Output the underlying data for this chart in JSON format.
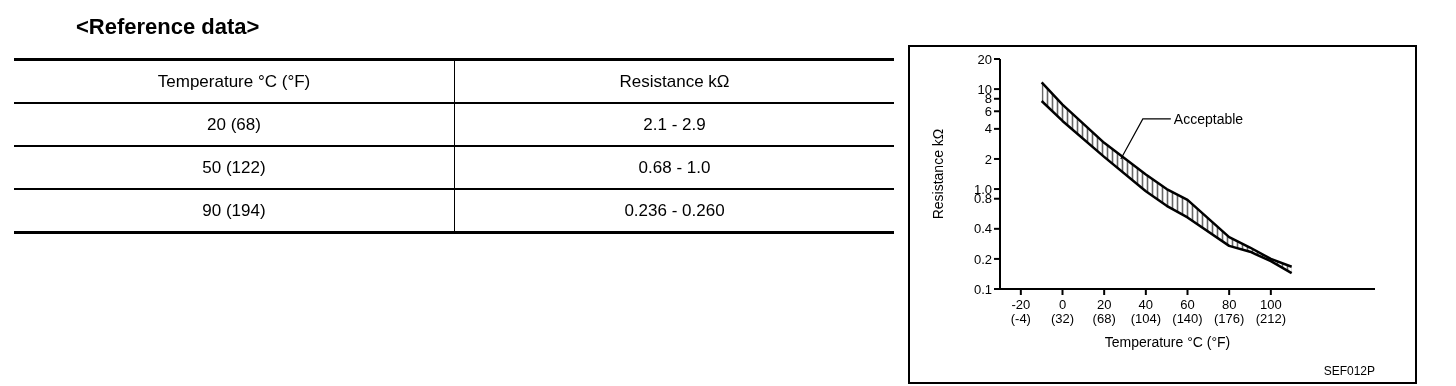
{
  "chart_data": [
    {
      "type": "other",
      "title": "<Reference data>",
      "annotations": [
        "Temperature °C (°F)",
        "Resistance kΩ",
        "20 (68)",
        "2.1 - 2.9",
        "50 (122)",
        "0.68 - 1.0",
        "90 (194)",
        "0.236 - 0.260"
      ]
    },
    {
      "type": "line",
      "x": [
        -10,
        0,
        20,
        40,
        50,
        60,
        80,
        90,
        100,
        110
      ],
      "series": [
        {
          "color": "#000000",
          "values": [
            7.6,
            4.8,
            2.1,
            0.95,
            0.68,
            0.52,
            0.27,
            0.236,
            0.19,
            0.144
          ],
          "lower": [
            7.6,
            4.8,
            2.1,
            0.95,
            0.68,
            0.52,
            0.27,
            0.236,
            0.19,
            0.144
          ],
          "upper": [
            11.7,
            7,
            2.9,
            1.4,
            1.0,
            0.78,
            0.33,
            0.26,
            0.2,
            0.167
          ]
        },
        {
          "color": "#000000",
          "values": [
            11.7,
            7,
            2.9,
            1.4,
            1.0,
            0.78,
            0.33,
            0.26,
            0.2,
            0.167
          ]
        }
      ],
      "log": "y",
      "ylim": [
        0.1,
        20
      ],
      "yticks": [
        0.1,
        0.2,
        0.4,
        0.8,
        {
          "value": 1,
          "label": "1.0"
        },
        2,
        4,
        6,
        8,
        10,
        20
      ],
      "xlim": [
        -30,
        150
      ],
      "xticks": [
        -20,
        0,
        20,
        40,
        60,
        80,
        100
      ],
      "x2lim": [
        -22,
        302
      ],
      "x2ticks": [
        {
          "value": -4,
          "label": "(-4)"
        },
        {
          "value": 32,
          "label": "(32)"
        },
        {
          "value": 68,
          "label": "(68)"
        },
        {
          "value": 104,
          "label": "(104)"
        },
        {
          "value": 140,
          "label": "(140)"
        },
        {
          "value": 176,
          "label": "(176)"
        },
        {
          "value": 212,
          "label": "(212)"
        }
      ],
      "ylabel": "Resistance  kΩ",
      "xlabel": "Temperature °C (°F)",
      "grid": false,
      "legend": false,
      "marker": "none",
      "line_style": "solid",
      "annotations": [
        {
          "text": "Acceptable",
          "x": 28,
          "y": 2
        },
        "SEF012P"
      ]
    }
  ]
}
